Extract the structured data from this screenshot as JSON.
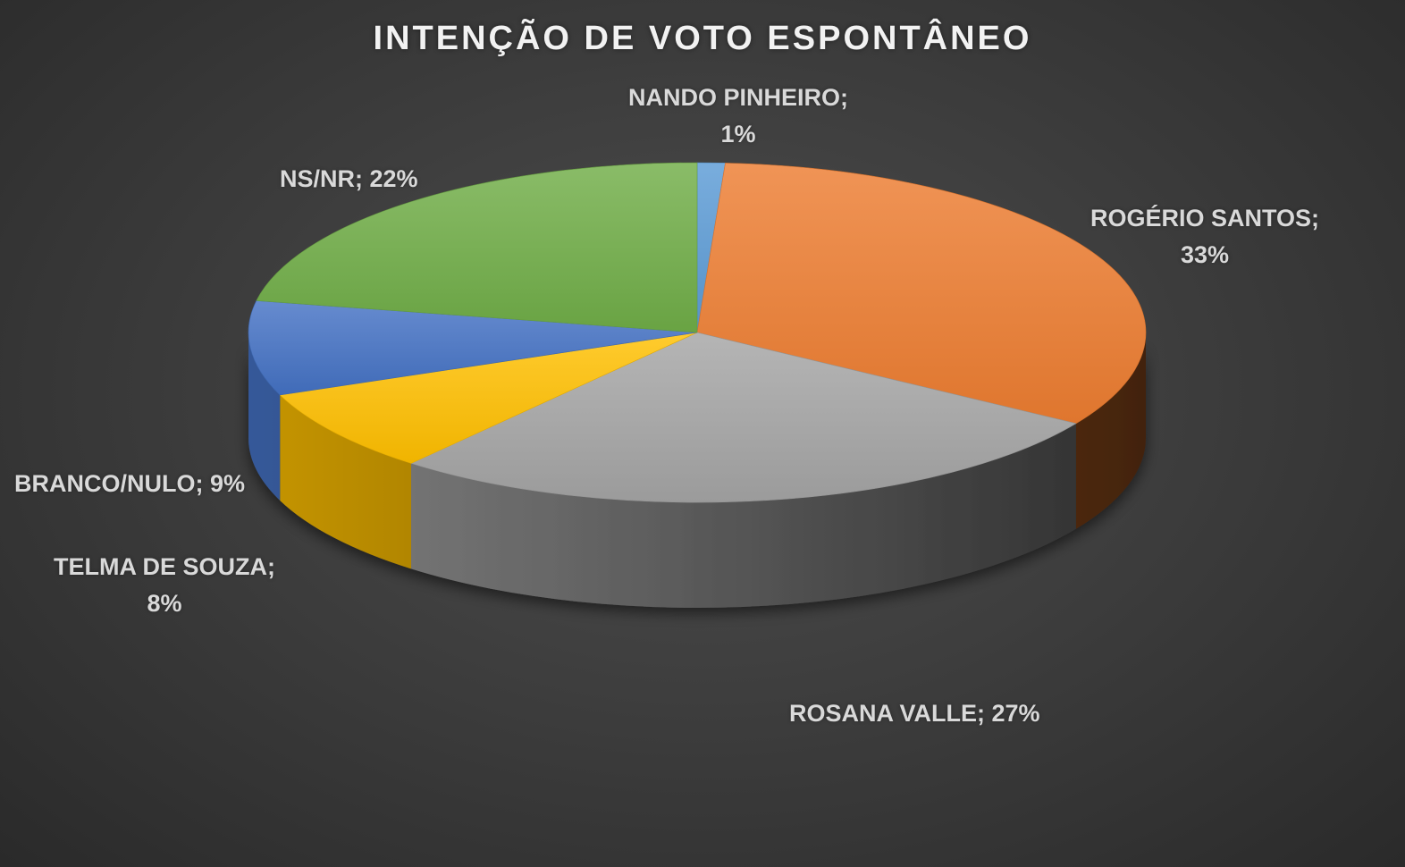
{
  "chart_data": {
    "type": "pie",
    "title": "INTENÇÃO DE VOTO ESPONTÂNEO",
    "slices": [
      {
        "key": "nando",
        "name": "NANDO PINHEIRO",
        "value": 1,
        "color": "#5b9bd5",
        "label_lines": [
          "NANDO PINHEIRO;",
          "1%"
        ]
      },
      {
        "key": "rogerio",
        "name": "ROGÉRIO SANTOS",
        "value": 33,
        "color": "#ed7d31",
        "label_lines": [
          "ROGÉRIO SANTOS;",
          "33%"
        ]
      },
      {
        "key": "rosana",
        "name": "ROSANA VALLE",
        "value": 27,
        "color": "#a5a5a5",
        "label_lines": [
          "ROSANA VALLE; 27%"
        ]
      },
      {
        "key": "telma",
        "name": "TELMA DE SOUZA",
        "value": 8,
        "color": "#ffc000",
        "label_lines": [
          "TELMA DE SOUZA;",
          "8%"
        ]
      },
      {
        "key": "branco",
        "name": "BRANCO/NULO",
        "value": 9,
        "color": "#4472c4",
        "label_lines": [
          "BRANCO/NULO; 9%"
        ]
      },
      {
        "key": "nsnr",
        "name": "NS/NR",
        "value": 22,
        "color": "#70ad47",
        "label_lines": [
          "NS/NR; 22%"
        ]
      }
    ]
  }
}
